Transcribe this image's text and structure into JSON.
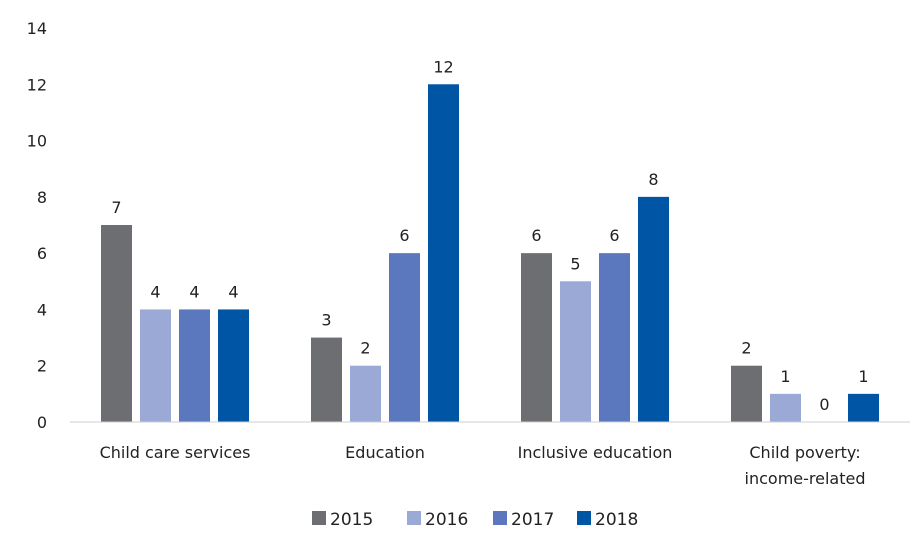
{
  "chart_data": {
    "type": "bar",
    "title": "",
    "xlabel": "",
    "ylabel": "",
    "ylim": [
      0,
      14
    ],
    "yticks": [
      0,
      2,
      4,
      6,
      8,
      10,
      12,
      14
    ],
    "grid": false,
    "legend_position": "bottom",
    "categories": [
      [
        "Child care services"
      ],
      [
        "Education"
      ],
      [
        "Inclusive education"
      ],
      [
        "Child poverty:",
        "income-related"
      ]
    ],
    "series": [
      {
        "name": "2015",
        "color": "#6d6e71",
        "values": [
          7,
          3,
          6,
          2
        ]
      },
      {
        "name": "2016",
        "color": "#9aa9d6",
        "values": [
          4,
          2,
          5,
          1
        ]
      },
      {
        "name": "2017",
        "color": "#5b78be",
        "values": [
          4,
          6,
          6,
          0
        ]
      },
      {
        "name": "2018",
        "color": "#0055a5",
        "values": [
          4,
          12,
          8,
          1
        ]
      }
    ]
  }
}
